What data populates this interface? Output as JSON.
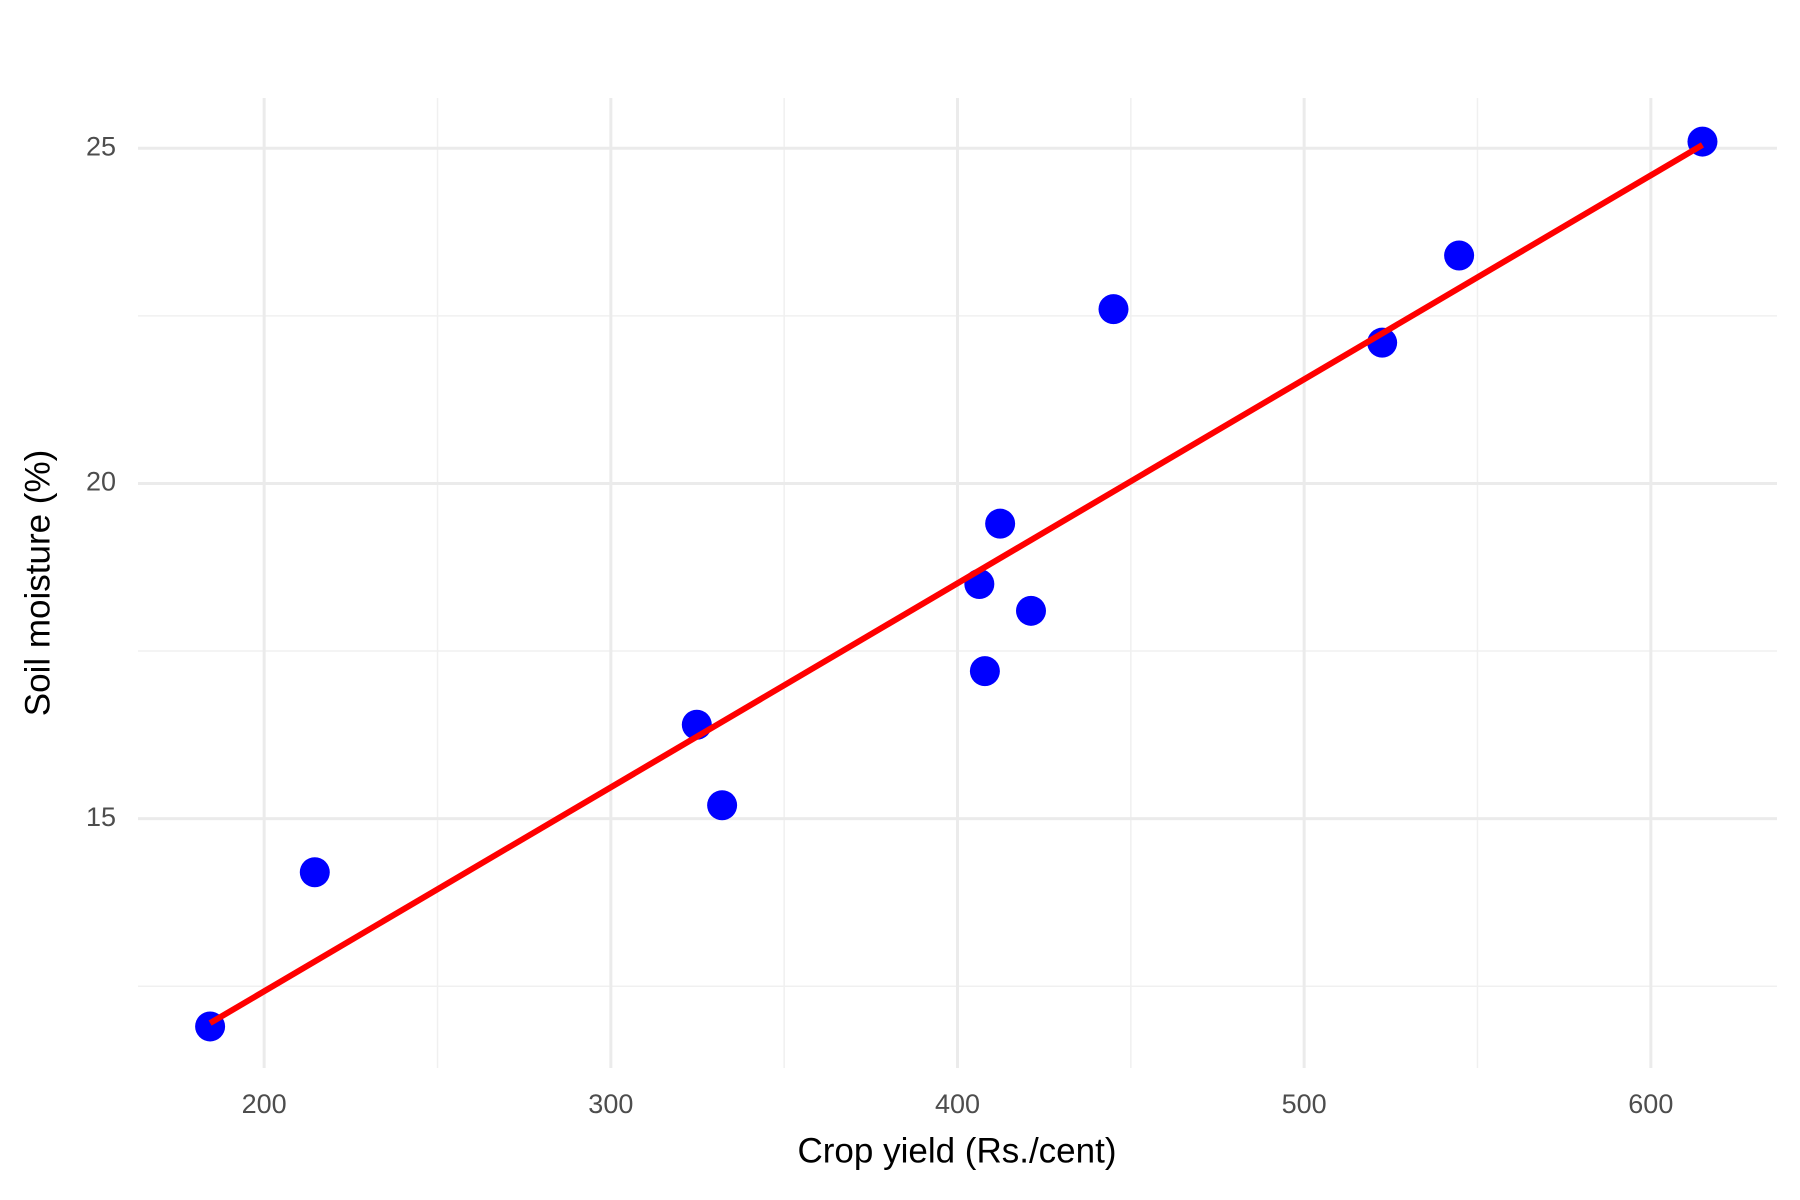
{
  "chart_data": {
    "type": "scatter",
    "x_label": "Crop yield (Rs./cent)",
    "y_label": "Soil moisture (%)",
    "series": [
      {
        "color": "#0000ff",
        "x": [
          184.4,
          214.6,
          324.8,
          332.1,
          406.3,
          407.9,
          412.3,
          421.2,
          445,
          522.5,
          544.7,
          614.9
        ],
        "values": [
          11.9,
          14.2,
          16.4,
          15.2,
          18.5,
          17.2,
          19.4,
          18.1,
          22.6,
          22.1,
          23.4,
          25.1
        ]
      }
    ],
    "fit": {
      "color": "#ff0000",
      "x": [
        184.4,
        614.9
      ],
      "values": [
        11.95,
        25.05
      ]
    },
    "xlim": [
      163.6,
      636.4
    ],
    "ylim": [
      11.28,
      25.75
    ],
    "xticks": [
      200,
      300,
      400,
      500,
      600
    ],
    "yticks": [
      15,
      20,
      25
    ],
    "x_minor_ticks": [
      250,
      350,
      450,
      550
    ],
    "y_minor_ticks": [
      12.5,
      17.5,
      22.5
    ],
    "grid": true
  }
}
